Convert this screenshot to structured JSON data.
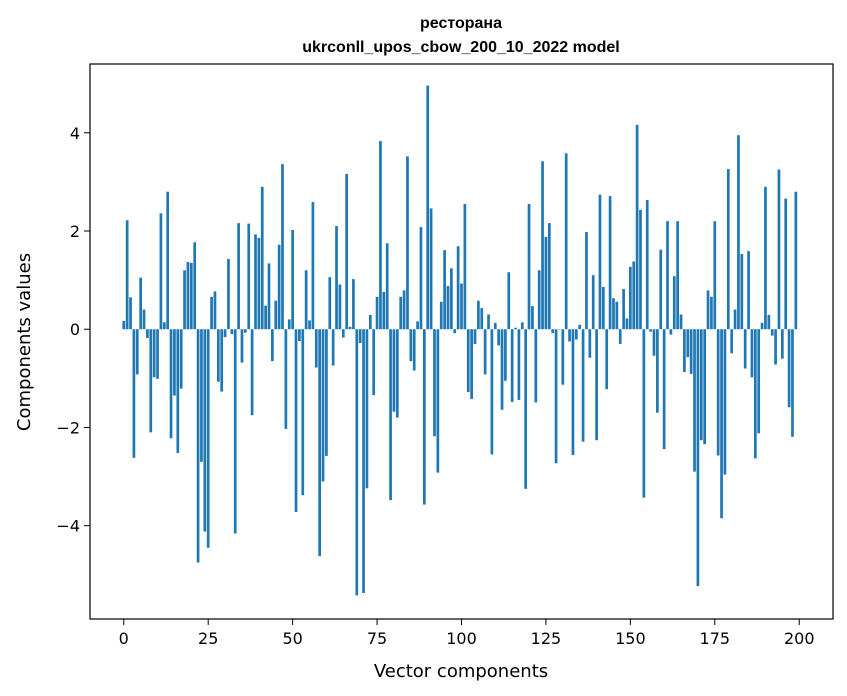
{
  "chart_data": {
    "type": "bar",
    "title_line1": "ресторана",
    "title_line2": "ukrconll_upos_cbow_200_10_2022 model",
    "xlabel": "Vector components",
    "ylabel": "Components values",
    "xlim": [
      -10,
      210
    ],
    "ylim": [
      -5.9,
      5.4
    ],
    "xticks": [
      0,
      25,
      50,
      75,
      100,
      125,
      150,
      175,
      200
    ],
    "yticks": [
      -4,
      -2,
      0,
      2,
      4
    ],
    "ytick_labels": [
      "−4",
      "−2",
      "0",
      "2",
      "4"
    ],
    "grid": false,
    "bar_color": "#1f77b4",
    "values": [
      0.17,
      2.22,
      0.65,
      -2.62,
      -0.92,
      1.05,
      0.4,
      -0.18,
      -2.1,
      -0.98,
      -1.01,
      2.36,
      0.14,
      2.8,
      -2.22,
      -1.35,
      -2.52,
      -1.21,
      1.2,
      1.37,
      1.35,
      1.77,
      -4.75,
      -2.7,
      -4.12,
      -4.45,
      0.66,
      0.77,
      -1.07,
      -1.27,
      -0.16,
      1.43,
      -0.1,
      -4.16,
      2.16,
      -0.68,
      -0.07,
      2.15,
      -1.75,
      1.93,
      1.86,
      2.9,
      0.48,
      1.34,
      -0.65,
      0.58,
      1.72,
      3.36,
      -2.03,
      0.2,
      2.02,
      -3.72,
      -0.24,
      -3.38,
      1.2,
      0.18,
      2.59,
      -0.78,
      -4.62,
      -3.1,
      -2.58,
      1.06,
      -0.74,
      2.1,
      0.91,
      -0.17,
      3.16,
      0.05,
      1.02,
      -5.42,
      -0.28,
      -5.37,
      -3.24,
      0.29,
      -1.34,
      0.66,
      3.83,
      0.76,
      1.75,
      -3.48,
      -1.68,
      -1.8,
      0.66,
      0.79,
      3.52,
      -0.65,
      -0.84,
      0.16,
      2.08,
      -3.57,
      4.96,
      2.46,
      -2.18,
      -2.92,
      0.56,
      1.61,
      0.88,
      1.24,
      -0.08,
      1.69,
      0.93,
      2.55,
      -1.28,
      -1.42,
      -0.3,
      0.58,
      0.43,
      -0.92,
      0.3,
      -2.55,
      0.13,
      -0.33,
      -1.64,
      -1.05,
      1.16,
      -1.48,
      0.03,
      -1.44,
      0.14,
      -3.25,
      2.55,
      0.47,
      -1.49,
      1.2,
      3.42,
      1.88,
      2.16,
      -0.08,
      -2.73,
      0.0,
      -1.13,
      3.58,
      -0.25,
      -2.56,
      -0.21,
      0.09,
      -2.29,
      1.98,
      -0.58,
      1.1,
      -2.26,
      2.74,
      0.86,
      -1.22,
      2.71,
      0.63,
      0.56,
      -0.3,
      0.82,
      0.22,
      1.27,
      1.38,
      4.16,
      2.43,
      -3.43,
      2.63,
      -0.05,
      -0.54,
      -1.7,
      1.62,
      -2.44,
      2.2,
      -0.11,
      1.08,
      2.2,
      0.3,
      -0.87,
      -0.57,
      -0.91,
      -2.9,
      -5.23,
      -2.26,
      -2.34,
      0.79,
      0.66,
      2.2,
      -2.57,
      -3.85,
      -2.96,
      3.26,
      -0.49,
      0.4,
      3.95,
      1.53,
      -0.8,
      1.59,
      -0.98,
      -2.63,
      -2.12,
      0.13,
      2.9,
      0.29,
      -0.13,
      -0.72,
      3.25,
      -0.6,
      2.66,
      -1.59,
      -2.19,
      2.8
    ]
  }
}
